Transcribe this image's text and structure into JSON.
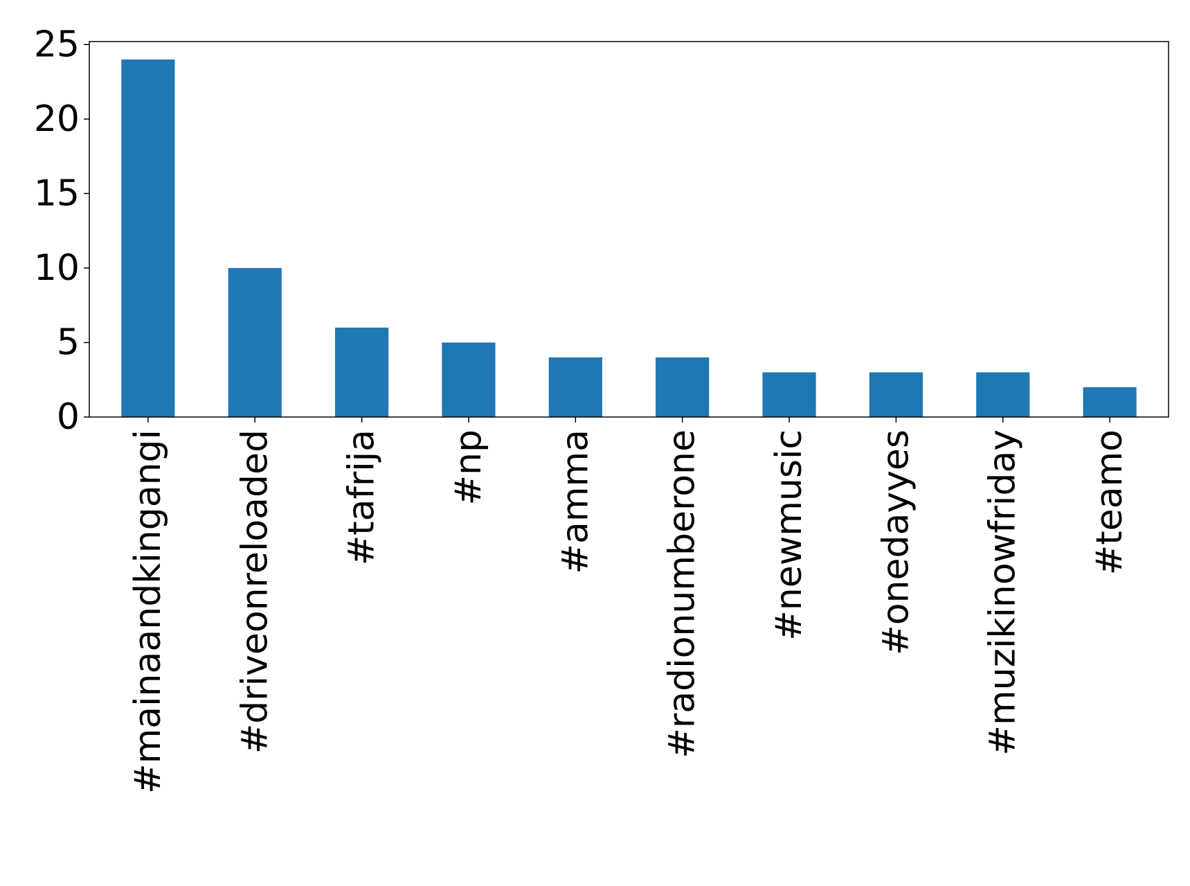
{
  "chart_data": {
    "type": "bar",
    "title": "",
    "xlabel": "",
    "ylabel": "",
    "categories": [
      "#mainaandkingangi",
      "#driveonreloaded",
      "#tafrija",
      "#np",
      "#amma",
      "#radionumberone",
      "#newmusic",
      "#onedayyes",
      "#muzikinowfriday",
      "#teamo"
    ],
    "values": [
      24,
      10,
      6,
      5,
      4,
      4,
      3,
      3,
      3,
      2
    ],
    "ylim": [
      0,
      25.2
    ],
    "yticks": [
      0,
      5,
      10,
      15,
      20,
      25
    ],
    "grid": false,
    "legend": "none",
    "bar_color": "#1f77b4"
  }
}
